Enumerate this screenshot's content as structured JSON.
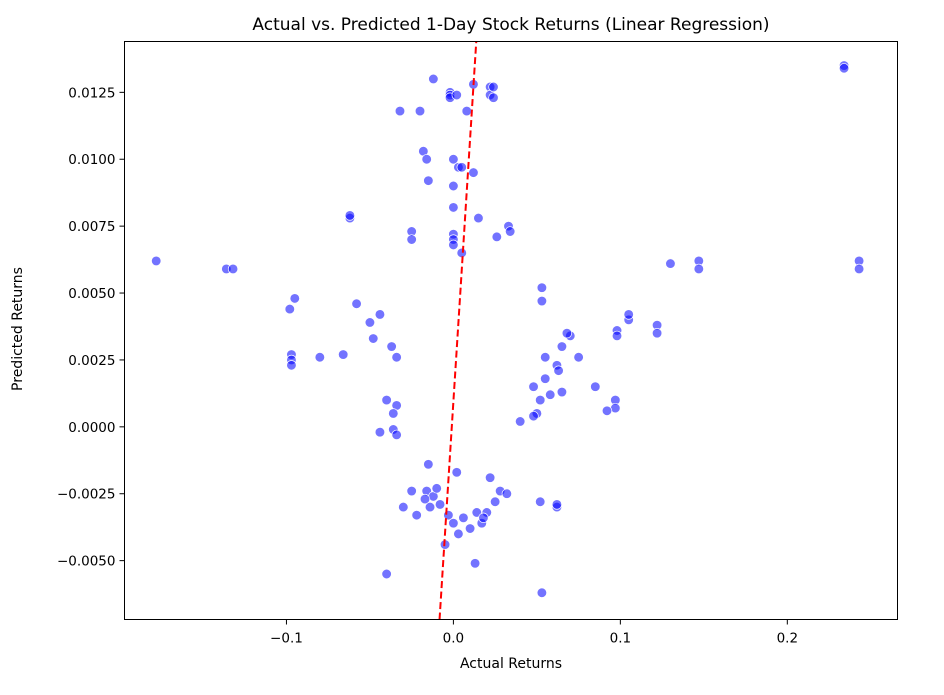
{
  "chart_data": {
    "type": "scatter",
    "title": "Actual vs. Predicted 1-Day Stock Returns (Linear Regression)",
    "xlabel": "Actual Returns",
    "ylabel": "Predicted Returns",
    "xlim": [
      -0.197,
      0.266
    ],
    "ylim": [
      -0.0072,
      0.0144
    ],
    "xticks": [
      -0.1,
      0.0,
      0.1,
      0.2
    ],
    "xtick_labels": [
      "−0.1",
      "0.0",
      "0.1",
      "0.2"
    ],
    "yticks": [
      -0.005,
      -0.0025,
      0.0,
      0.0025,
      0.005,
      0.0075,
      0.01,
      0.0125
    ],
    "ytick_labels": [
      "−0.0050",
      "−0.0025",
      "0.0000",
      "0.0025",
      "0.0050",
      "0.0075",
      "0.0100",
      "0.0125"
    ],
    "grid": false,
    "colors": {
      "points": "#0000ff",
      "point_edge": "#ffffff",
      "line": "#ff0000"
    },
    "reference_line": {
      "style": "dashed",
      "x": [
        -0.0083,
        0.0137
      ],
      "y": [
        -0.0072,
        0.0144
      ]
    },
    "series": [
      {
        "points": [
          [
            -0.178,
            0.0062
          ],
          [
            -0.136,
            0.0059
          ],
          [
            -0.132,
            0.0059
          ],
          [
            0.234,
            0.0135
          ],
          [
            0.234,
            0.0134
          ],
          [
            0.243,
            0.0062
          ],
          [
            0.243,
            0.0059
          ],
          [
            0.147,
            0.0062
          ],
          [
            0.147,
            0.0059
          ],
          [
            0.13,
            0.0061
          ],
          [
            -0.098,
            0.0044
          ],
          [
            -0.095,
            0.0048
          ],
          [
            -0.097,
            0.0027
          ],
          [
            -0.097,
            0.0025
          ],
          [
            -0.097,
            0.0023
          ],
          [
            -0.08,
            0.0026
          ],
          [
            -0.066,
            0.0027
          ],
          [
            -0.058,
            0.0046
          ],
          [
            -0.062,
            0.0078
          ],
          [
            -0.062,
            0.0079
          ],
          [
            -0.032,
            0.0118
          ],
          [
            -0.02,
            0.0118
          ],
          [
            -0.025,
            0.0073
          ],
          [
            -0.025,
            0.007
          ],
          [
            -0.018,
            0.0103
          ],
          [
            -0.016,
            0.01
          ],
          [
            -0.012,
            0.013
          ],
          [
            -0.015,
            0.0092
          ],
          [
            -0.002,
            0.0125
          ],
          [
            -0.002,
            0.0124
          ],
          [
            -0.002,
            0.0123
          ],
          [
            0.002,
            0.0124
          ],
          [
            0.008,
            0.0118
          ],
          [
            0.012,
            0.0128
          ],
          [
            0.022,
            0.0127
          ],
          [
            0.022,
            0.0124
          ],
          [
            0.024,
            0.0127
          ],
          [
            0.024,
            0.0123
          ],
          [
            0.0,
            0.01
          ],
          [
            0.003,
            0.0097
          ],
          [
            0.005,
            0.0097
          ],
          [
            0.0,
            0.009
          ],
          [
            0.012,
            0.0095
          ],
          [
            0.0,
            0.0082
          ],
          [
            0.015,
            0.0078
          ],
          [
            0.026,
            0.0071
          ],
          [
            0.033,
            0.0075
          ],
          [
            0.034,
            0.0073
          ],
          [
            0.0,
            0.0072
          ],
          [
            0.0,
            0.007
          ],
          [
            0.0,
            0.0068
          ],
          [
            0.005,
            0.0065
          ],
          [
            -0.04,
            -0.0055
          ],
          [
            0.053,
            -0.0062
          ],
          [
            0.013,
            -0.0051
          ],
          [
            0.052,
            -0.0028
          ],
          [
            0.062,
            -0.003
          ],
          [
            0.062,
            -0.0029
          ],
          [
            0.097,
            0.001
          ],
          [
            0.097,
            0.0007
          ],
          [
            0.092,
            0.0006
          ],
          [
            0.085,
            0.0015
          ],
          [
            0.098,
            0.0036
          ],
          [
            0.098,
            0.0034
          ],
          [
            0.105,
            0.004
          ],
          [
            0.105,
            0.0042
          ],
          [
            0.122,
            0.0038
          ],
          [
            0.122,
            0.0035
          ],
          [
            0.075,
            0.0026
          ],
          [
            0.065,
            0.003
          ],
          [
            0.07,
            0.0034
          ],
          [
            0.062,
            0.0023
          ],
          [
            0.063,
            0.0021
          ],
          [
            0.055,
            0.0018
          ],
          [
            0.058,
            0.0012
          ],
          [
            0.065,
            0.0013
          ],
          [
            0.052,
            0.001
          ],
          [
            0.05,
            0.0005
          ],
          [
            0.048,
            0.0004
          ],
          [
            0.04,
            0.0002
          ],
          [
            0.048,
            0.0015
          ],
          [
            0.055,
            0.0026
          ],
          [
            0.053,
            0.0047
          ],
          [
            0.053,
            0.0052
          ],
          [
            0.068,
            0.0035
          ],
          [
            -0.05,
            0.0039
          ],
          [
            -0.044,
            0.0042
          ],
          [
            -0.037,
            0.003
          ],
          [
            -0.034,
            0.0026
          ],
          [
            -0.04,
            0.001
          ],
          [
            -0.034,
            0.0008
          ],
          [
            -0.036,
            0.0005
          ],
          [
            -0.044,
            -0.0002
          ],
          [
            -0.036,
            -0.0001
          ],
          [
            -0.034,
            -0.0003
          ],
          [
            -0.048,
            0.0033
          ],
          [
            -0.025,
            -0.0024
          ],
          [
            -0.016,
            -0.0024
          ],
          [
            -0.012,
            -0.0026
          ],
          [
            -0.017,
            -0.0027
          ],
          [
            -0.01,
            -0.0023
          ],
          [
            -0.008,
            -0.0029
          ],
          [
            -0.022,
            -0.0033
          ],
          [
            -0.03,
            -0.003
          ],
          [
            -0.014,
            -0.003
          ],
          [
            -0.003,
            -0.0033
          ],
          [
            0.0,
            -0.0036
          ],
          [
            0.006,
            -0.0034
          ],
          [
            0.01,
            -0.0038
          ],
          [
            0.014,
            -0.0032
          ],
          [
            0.017,
            -0.0036
          ],
          [
            0.02,
            -0.0032
          ],
          [
            0.022,
            -0.0019
          ],
          [
            0.028,
            -0.0024
          ],
          [
            0.032,
            -0.0025
          ],
          [
            0.025,
            -0.0028
          ],
          [
            -0.005,
            -0.0044
          ],
          [
            0.003,
            -0.004
          ],
          [
            0.018,
            -0.0034
          ],
          [
            -0.015,
            -0.0014
          ],
          [
            0.002,
            -0.0017
          ]
        ]
      }
    ]
  }
}
